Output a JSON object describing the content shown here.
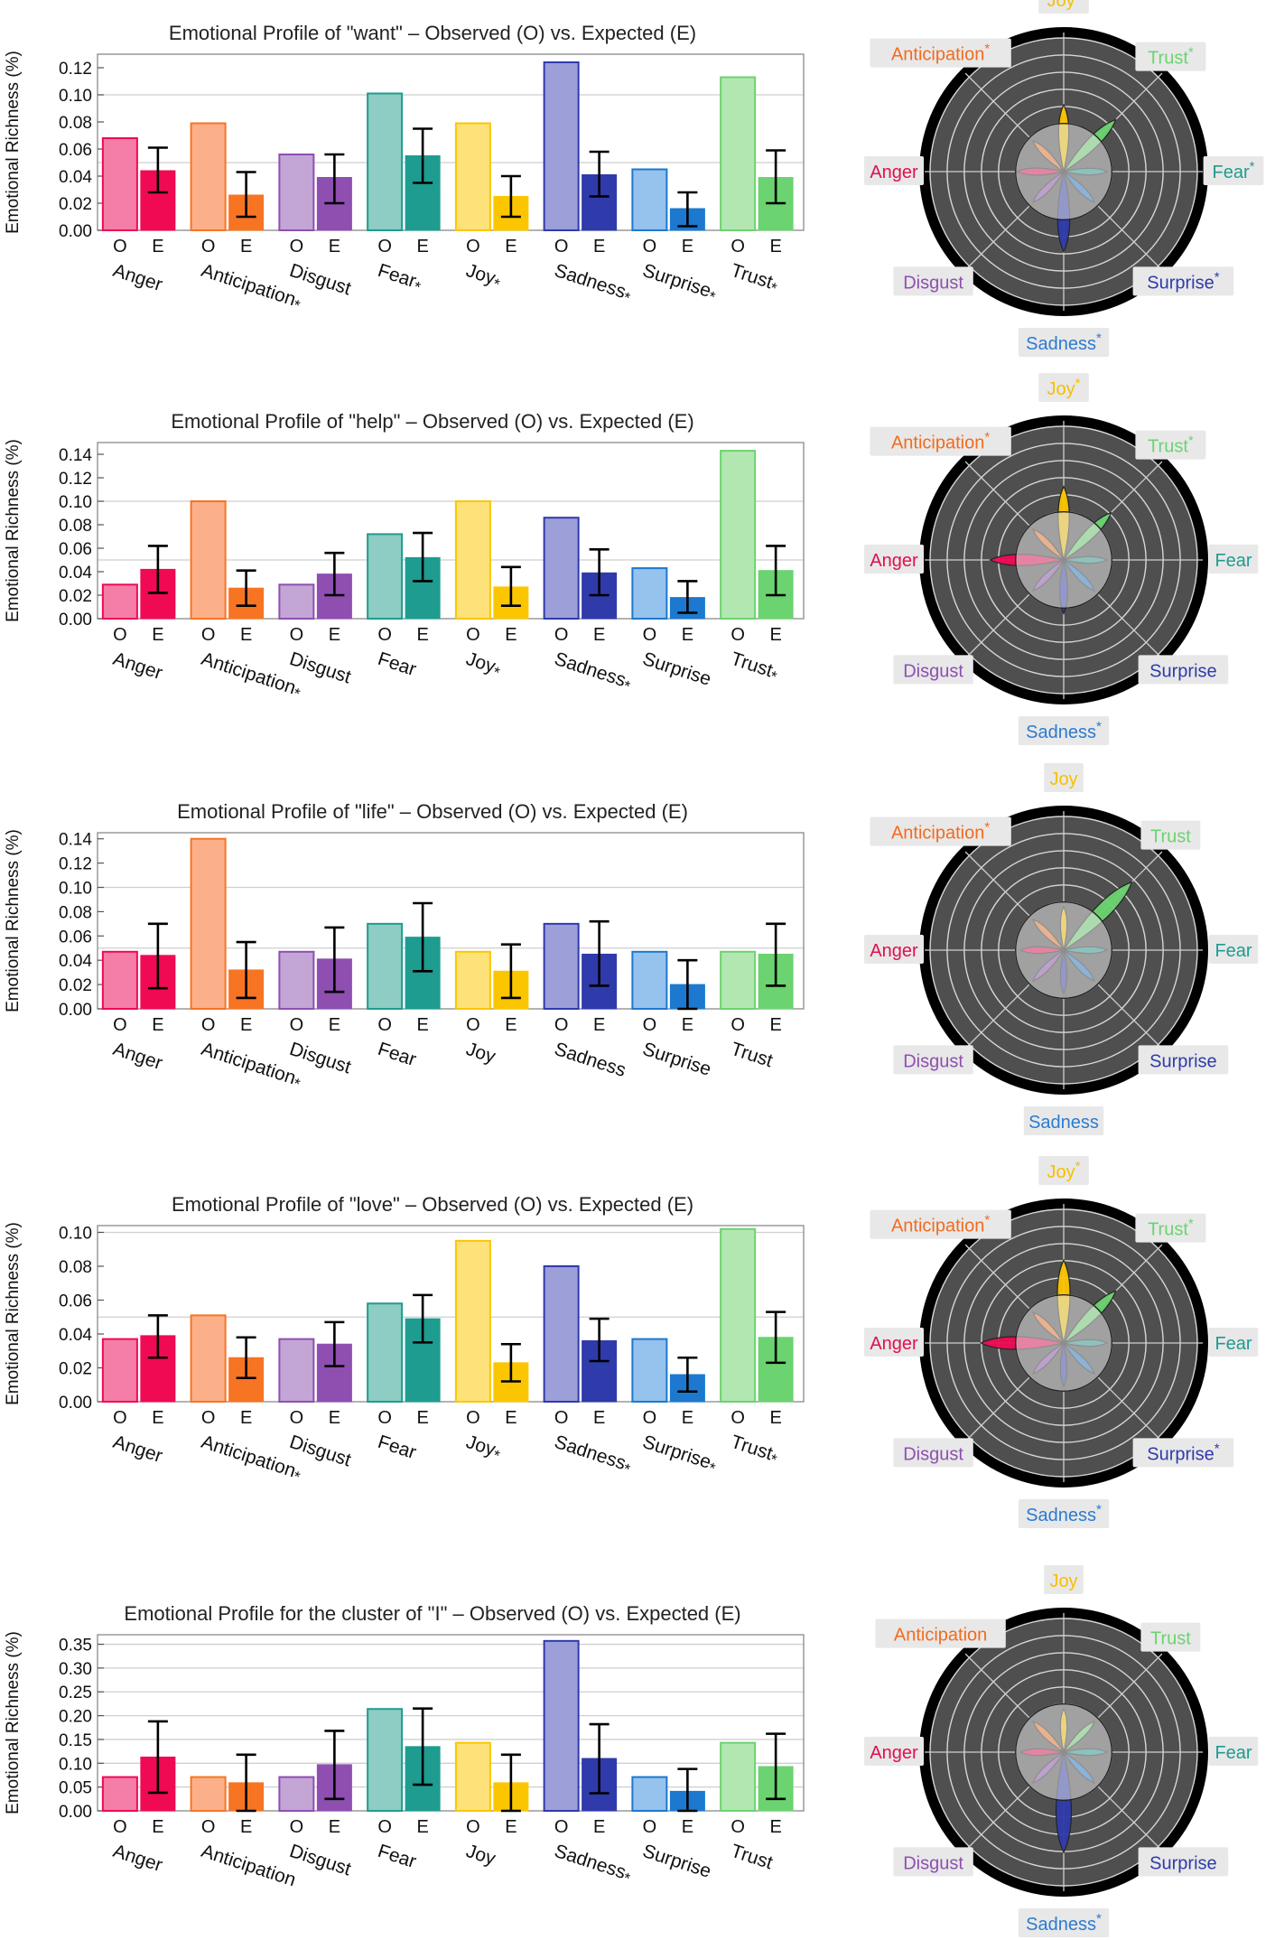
{
  "emotions": [
    {
      "name": "Anger",
      "light": "#f57ea8",
      "dark": "#ef0a53"
    },
    {
      "name": "Anticipation",
      "light": "#fbb08a",
      "dark": "#f77423"
    },
    {
      "name": "Disgust",
      "light": "#c3a6d6",
      "dark": "#8e4fb1"
    },
    {
      "name": "Fear",
      "light": "#8ecdc3",
      "dark": "#1e9c90"
    },
    {
      "name": "Joy",
      "light": "#fde27a",
      "dark": "#fbc600"
    },
    {
      "name": "Sadness",
      "light": "#9d9fd8",
      "dark": "#2f3aab"
    },
    {
      "name": "Surprise",
      "light": "#96c2ee",
      "dark": "#1c79cf"
    },
    {
      "name": "Trust",
      "light": "#b3e7b1",
      "dark": "#6bd370"
    }
  ],
  "label_colors": {
    "Anger": "#e0104f",
    "Anticipation": "#f26b1d",
    "Disgust": "#8e4fb1",
    "Fear": "#1e9c90",
    "Joy": "#f5c000",
    "Sadness": "#2b7bd0",
    "Surprise": "#2f3aab",
    "Trust": "#6bd370"
  },
  "axis_ticks": {
    "observed": "O",
    "expected": "E"
  },
  "asterisk": "*",
  "chart_data": [
    {
      "type": "bar",
      "title": "Emotional Profile of \"want\" – Observed (O) vs. Expected (E)",
      "ylabel": "Emotional Richness (%)",
      "ylim": [
        0,
        0.13
      ],
      "yticks": [
        0.0,
        0.02,
        0.04,
        0.06,
        0.08,
        0.1,
        0.12
      ],
      "ytick_labels": [
        "0.00",
        "0.02",
        "0.04",
        "0.06",
        "0.08",
        "0.10",
        "0.12"
      ],
      "gridlines": [
        0.05,
        0.1
      ],
      "categories": [
        "Anger",
        "Anticipation",
        "Disgust",
        "Fear",
        "Joy",
        "Sadness",
        "Surprise",
        "Trust"
      ],
      "significant": [
        false,
        true,
        false,
        true,
        true,
        true,
        true,
        true
      ],
      "series": [
        {
          "name": "Observed (O)",
          "values": [
            0.068,
            0.079,
            0.056,
            0.101,
            0.079,
            0.124,
            0.045,
            0.113
          ]
        },
        {
          "name": "Expected (E)",
          "values": [
            0.044,
            0.026,
            0.039,
            0.055,
            0.025,
            0.041,
            0.016,
            0.039
          ],
          "err_low": [
            0.028,
            0.01,
            0.02,
            0.035,
            0.01,
            0.025,
            0.003,
            0.02
          ],
          "err_high": [
            0.061,
            0.043,
            0.056,
            0.075,
            0.04,
            0.058,
            0.028,
            0.059
          ]
        }
      ],
      "radar": {
        "rings": 5,
        "petals": [
          0.35,
          0.25,
          0.08,
          0.3,
          0.5,
          0.6,
          0.25,
          0.55
        ],
        "labels": [
          {
            "text": "Joy",
            "sig": true
          },
          {
            "text": "Trust",
            "sig": true
          },
          {
            "text": "Fear",
            "sig": true
          },
          {
            "text": "Surprise",
            "sig": true
          },
          {
            "text": "Sadness",
            "sig": true
          },
          {
            "text": "Disgust",
            "sig": false
          },
          {
            "text": "Anger",
            "sig": false
          },
          {
            "text": "Anticipation",
            "sig": true
          }
        ]
      }
    },
    {
      "type": "bar",
      "title": "Emotional Profile of \"help\" – Observed (O) vs. Expected (E)",
      "ylabel": "Emotional Richness (%)",
      "ylim": [
        0,
        0.15
      ],
      "yticks": [
        0.0,
        0.02,
        0.04,
        0.06,
        0.08,
        0.1,
        0.12,
        0.14
      ],
      "ytick_labels": [
        "0.00",
        "0.02",
        "0.04",
        "0.06",
        "0.08",
        "0.10",
        "0.12",
        "0.14"
      ],
      "gridlines": [
        0.05,
        0.1
      ],
      "categories": [
        "Anger",
        "Anticipation",
        "Disgust",
        "Fear",
        "Joy",
        "Sadness",
        "Surprise",
        "Trust"
      ],
      "significant": [
        false,
        true,
        false,
        false,
        true,
        true,
        false,
        true
      ],
      "series": [
        {
          "name": "Observed (O)",
          "values": [
            0.029,
            0.1,
            0.029,
            0.072,
            0.1,
            0.086,
            0.043,
            0.143
          ]
        },
        {
          "name": "Expected (E)",
          "values": [
            0.042,
            0.026,
            0.038,
            0.052,
            0.027,
            0.039,
            0.018,
            0.041
          ],
          "err_low": [
            0.022,
            0.011,
            0.02,
            0.032,
            0.011,
            0.02,
            0.005,
            0.02
          ],
          "err_high": [
            0.062,
            0.041,
            0.056,
            0.073,
            0.044,
            0.059,
            0.032,
            0.062
          ]
        }
      ],
      "radar": {
        "rings": 5,
        "petals": [
          0.55,
          0.1,
          0.08,
          0.1,
          0.55,
          0.4,
          0.1,
          0.5
        ],
        "labels": [
          {
            "text": "Joy",
            "sig": true
          },
          {
            "text": "Trust",
            "sig": true
          },
          {
            "text": "Fear",
            "sig": false
          },
          {
            "text": "Surprise",
            "sig": false
          },
          {
            "text": "Sadness",
            "sig": true
          },
          {
            "text": "Disgust",
            "sig": false
          },
          {
            "text": "Anger",
            "sig": false
          },
          {
            "text": "Anticipation",
            "sig": true
          }
        ]
      }
    },
    {
      "type": "bar",
      "title": "Emotional Profile of \"life\" – Observed (O) vs. Expected (E)",
      "ylabel": "Emotional Richness (%)",
      "ylim": [
        0,
        0.145
      ],
      "yticks": [
        0.0,
        0.02,
        0.04,
        0.06,
        0.08,
        0.1,
        0.12,
        0.14
      ],
      "ytick_labels": [
        "0.00",
        "0.02",
        "0.04",
        "0.06",
        "0.08",
        "0.10",
        "0.12",
        "0.14"
      ],
      "gridlines": [
        0.05,
        0.1
      ],
      "categories": [
        "Anger",
        "Anticipation",
        "Disgust",
        "Fear",
        "Joy",
        "Sadness",
        "Surprise",
        "Trust"
      ],
      "significant": [
        false,
        true,
        false,
        false,
        false,
        false,
        false,
        false
      ],
      "series": [
        {
          "name": "Observed (O)",
          "values": [
            0.047,
            0.14,
            0.047,
            0.07,
            0.047,
            0.07,
            0.047,
            0.047
          ]
        },
        {
          "name": "Expected (E)",
          "values": [
            0.044,
            0.032,
            0.041,
            0.059,
            0.031,
            0.045,
            0.02,
            0.045
          ],
          "err_low": [
            0.017,
            0.009,
            0.014,
            0.031,
            0.009,
            0.019,
            0.0,
            0.019
          ],
          "err_high": [
            0.07,
            0.055,
            0.067,
            0.087,
            0.053,
            0.072,
            0.04,
            0.07
          ]
        }
      ],
      "radar": {
        "rings": 5,
        "petals": [
          0.1,
          0.08,
          0.08,
          0.08,
          0.1,
          0.1,
          0.08,
          0.72
        ],
        "labels": [
          {
            "text": "Joy",
            "sig": false
          },
          {
            "text": "Trust",
            "sig": false
          },
          {
            "text": "Fear",
            "sig": false
          },
          {
            "text": "Surprise",
            "sig": false
          },
          {
            "text": "Sadness",
            "sig": false
          },
          {
            "text": "Disgust",
            "sig": false
          },
          {
            "text": "Anger",
            "sig": false
          },
          {
            "text": "Anticipation",
            "sig": true
          }
        ]
      }
    },
    {
      "type": "bar",
      "title": "Emotional Profile of \"love\" – Observed (O) vs. Expected (E)",
      "ylabel": "Emotional Richness (%)",
      "ylim": [
        0,
        0.104
      ],
      "yticks": [
        0.0,
        0.02,
        0.04,
        0.06,
        0.08,
        0.1
      ],
      "ytick_labels": [
        "0.00",
        "0.02",
        "0.04",
        "0.06",
        "0.08",
        "0.10"
      ],
      "gridlines": [
        0.05,
        0.1
      ],
      "categories": [
        "Anger",
        "Anticipation",
        "Disgust",
        "Fear",
        "Joy",
        "Sadness",
        "Surprise",
        "Trust"
      ],
      "significant": [
        false,
        true,
        false,
        false,
        true,
        true,
        true,
        true
      ],
      "series": [
        {
          "name": "Observed (O)",
          "values": [
            0.037,
            0.051,
            0.037,
            0.058,
            0.095,
            0.08,
            0.037,
            0.102
          ]
        },
        {
          "name": "Expected (E)",
          "values": [
            0.039,
            0.026,
            0.034,
            0.049,
            0.023,
            0.036,
            0.016,
            0.038
          ],
          "err_low": [
            0.026,
            0.014,
            0.021,
            0.035,
            0.012,
            0.024,
            0.006,
            0.023
          ],
          "err_high": [
            0.051,
            0.038,
            0.047,
            0.063,
            0.034,
            0.049,
            0.026,
            0.053
          ]
        }
      ],
      "radar": {
        "rings": 5,
        "petals": [
          0.62,
          0.1,
          0.1,
          0.1,
          0.62,
          0.3,
          0.08,
          0.55
        ],
        "labels": [
          {
            "text": "Joy",
            "sig": true
          },
          {
            "text": "Trust",
            "sig": true
          },
          {
            "text": "Fear",
            "sig": false
          },
          {
            "text": "Surprise",
            "sig": true
          },
          {
            "text": "Sadness",
            "sig": true
          },
          {
            "text": "Disgust",
            "sig": false
          },
          {
            "text": "Anger",
            "sig": false
          },
          {
            "text": "Anticipation",
            "sig": true
          }
        ]
      }
    },
    {
      "type": "bar",
      "title": "Emotional Profile for the cluster of \"I\" – Observed (O) vs. Expected (E)",
      "ylabel": "Emotional Richness (%)",
      "ylim": [
        0,
        0.37
      ],
      "yticks": [
        0.0,
        0.05,
        0.1,
        0.15,
        0.2,
        0.25,
        0.3,
        0.35
      ],
      "ytick_labels": [
        "0.00",
        "0.05",
        "0.10",
        "0.15",
        "0.20",
        "0.25",
        "0.30",
        "0.35"
      ],
      "gridlines": [
        0.05,
        0.1,
        0.15,
        0.2,
        0.25,
        0.3,
        0.35
      ],
      "categories": [
        "Anger",
        "Anticipation",
        "Disgust",
        "Fear",
        "Joy",
        "Sadness",
        "Surprise",
        "Trust"
      ],
      "significant": [
        false,
        false,
        false,
        false,
        false,
        true,
        false,
        false
      ],
      "series": [
        {
          "name": "Observed (O)",
          "values": [
            0.071,
            0.071,
            0.071,
            0.214,
            0.143,
            0.357,
            0.071,
            0.143
          ]
        },
        {
          "name": "Expected (E)",
          "values": [
            0.113,
            0.059,
            0.097,
            0.135,
            0.059,
            0.11,
            0.041,
            0.093
          ],
          "err_low": [
            0.038,
            0.0,
            0.025,
            0.055,
            0.0,
            0.037,
            0.0,
            0.025
          ],
          "err_high": [
            0.188,
            0.118,
            0.168,
            0.215,
            0.118,
            0.182,
            0.088,
            0.162
          ]
        }
      ],
      "radar": {
        "rings": 5,
        "petals": [
          0.1,
          0.1,
          0.08,
          0.1,
          0.1,
          0.75,
          0.08,
          0.1
        ],
        "labels": [
          {
            "text": "Joy",
            "sig": false
          },
          {
            "text": "Trust",
            "sig": false
          },
          {
            "text": "Fear",
            "sig": false
          },
          {
            "text": "Surprise",
            "sig": false
          },
          {
            "text": "Sadness",
            "sig": true
          },
          {
            "text": "Disgust",
            "sig": false
          },
          {
            "text": "Anger",
            "sig": false
          },
          {
            "text": "Anticipation",
            "sig": false
          }
        ]
      }
    }
  ]
}
